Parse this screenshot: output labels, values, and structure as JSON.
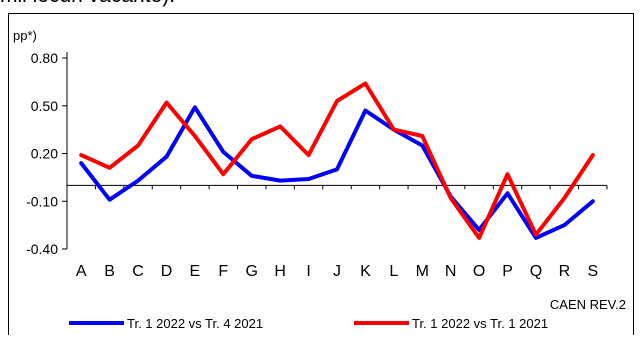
{
  "caption": "mii locuri vacante).",
  "chart_data": {
    "type": "line",
    "ylabel": "pp*)",
    "xlabel": "CAEN REV.2",
    "ylim": [
      -0.4,
      0.8
    ],
    "yticks": [
      "0.80",
      "0.50",
      "0.20",
      "-0.10",
      "-0.40"
    ],
    "ytick_values": [
      0.8,
      0.5,
      0.2,
      -0.1,
      -0.4
    ],
    "categories": [
      "A",
      "B",
      "C",
      "D",
      "E",
      "F",
      "G",
      "H",
      "I",
      "J",
      "K",
      "L",
      "M",
      "N",
      "O",
      "P",
      "Q",
      "R",
      "S"
    ],
    "grid": false,
    "legend_position": "bottom",
    "series": [
      {
        "name": "Tr. 1 2022 vs Tr. 4 2021",
        "color": "#0000ff",
        "values": [
          0.14,
          -0.09,
          0.03,
          0.18,
          0.49,
          0.21,
          0.06,
          0.03,
          0.04,
          0.1,
          0.47,
          0.35,
          0.25,
          -0.07,
          -0.28,
          -0.05,
          -0.33,
          -0.25,
          -0.1
        ]
      },
      {
        "name": "Tr. 1 2022 vs Tr. 1 2021",
        "color": "#ff0000",
        "values": [
          0.19,
          0.11,
          0.25,
          0.52,
          0.31,
          0.07,
          0.29,
          0.37,
          0.19,
          0.53,
          0.64,
          0.35,
          0.31,
          -0.08,
          -0.33,
          0.07,
          -0.31,
          -0.08,
          0.19
        ]
      }
    ]
  }
}
